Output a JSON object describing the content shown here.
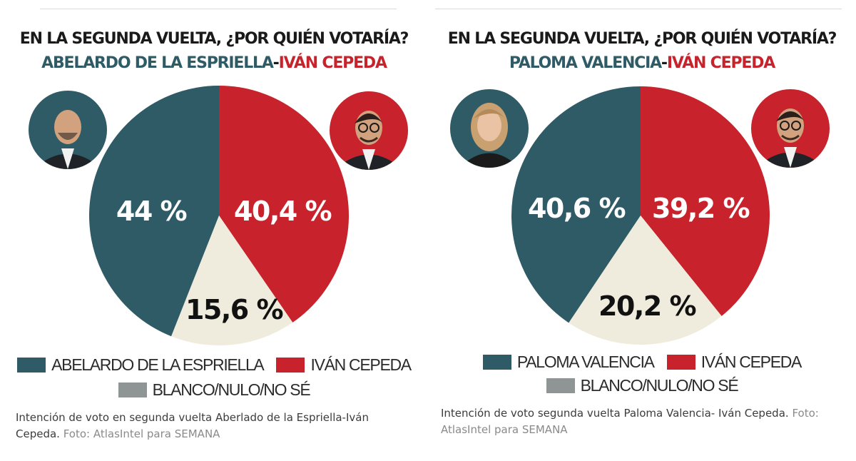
{
  "colors": {
    "candidate_blue": "#2e5b66",
    "cepeda_red": "#c8232c",
    "blank_cream": "#f0ecdd",
    "legend_gray": "#8f9594"
  },
  "chart_data": [
    {
      "type": "pie",
      "title_line1": "EN LA SEGUNDA VUELTA, ¿POR QUIÉN VOTARÍA?",
      "title_candidate_a": "ABELARDO DE LA ESPRIELLA",
      "title_separator": "-",
      "title_candidate_b": "IVÁN CEPEDA",
      "slices": [
        {
          "label": "IVÁN CEPEDA",
          "value": 40.4,
          "value_text": "40,4 %",
          "color": "#c8232c",
          "icon": "man-with-glasses-portrait-icon"
        },
        {
          "label": "BLANCO/NULO/NO SÉ",
          "value": 15.6,
          "value_text": "15,6 %",
          "color": "#f0ecdd",
          "legend_color": "#8f9594"
        },
        {
          "label": "ABELARDO DE LA ESPRIELLA",
          "value": 44,
          "value_text": "44 %",
          "color": "#2e5b66",
          "icon": "bald-man-portrait-icon"
        }
      ],
      "caption": "Intención de voto en segunda vuelta Aberlado de la Espriella-Iván Cepeda.",
      "credit": "Foto: AtlasIntel para SEMANA"
    },
    {
      "type": "pie",
      "title_line1": "EN LA SEGUNDA VUELTA, ¿POR QUIÉN VOTARÍA?",
      "title_candidate_a": "PALOMA VALENCIA",
      "title_separator": "-",
      "title_candidate_b": "IVÁN CEPEDA",
      "slices": [
        {
          "label": "IVÁN CEPEDA",
          "value": 39.2,
          "value_text": "39,2 %",
          "color": "#c8232c",
          "icon": "man-with-glasses-portrait-icon"
        },
        {
          "label": "BLANCO/NULO/NO SÉ",
          "value": 20.2,
          "value_text": "20,2 %",
          "color": "#f0ecdd",
          "legend_color": "#8f9594"
        },
        {
          "label": "PALOMA VALENCIA",
          "value": 40.6,
          "value_text": "40,6 %",
          "color": "#2e5b66",
          "icon": "blonde-woman-portrait-icon"
        }
      ],
      "caption": "Intención de voto segunda vuelta Paloma Valencia- Iván Cepeda.",
      "credit": "Foto: AtlasIntel para SEMANA"
    }
  ]
}
